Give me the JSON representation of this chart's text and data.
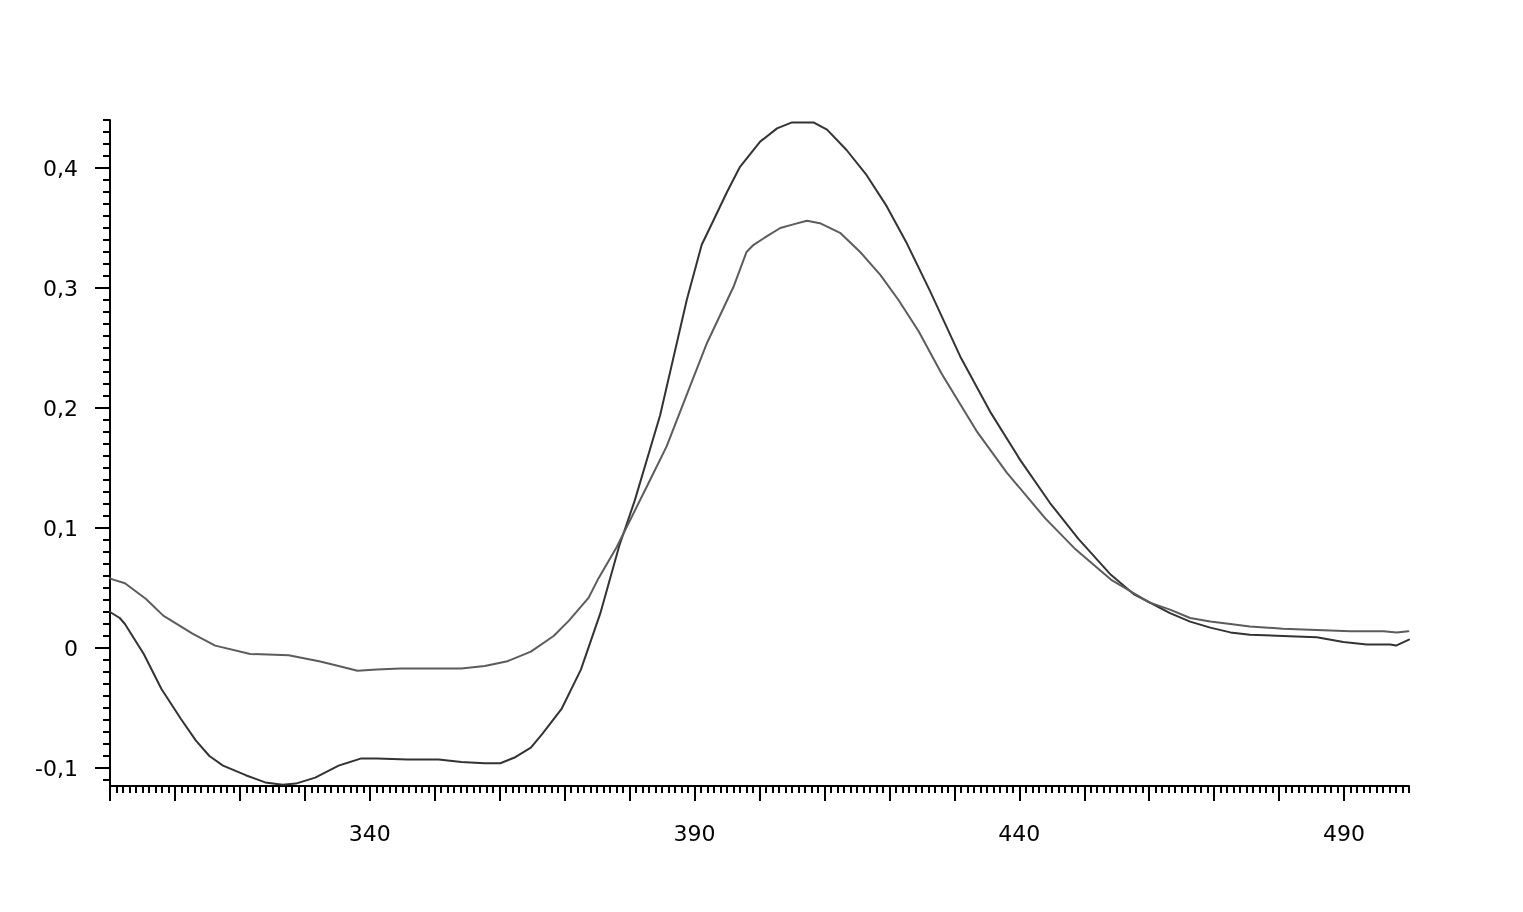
{
  "chart_data": {
    "type": "line",
    "xlim": [
      300,
      500
    ],
    "ylim": [
      -0.115,
      0.44
    ],
    "xticks": [
      {
        "value": 300,
        "label": null
      },
      {
        "value": 310,
        "label": null
      },
      {
        "value": 320,
        "label": null
      },
      {
        "value": 330,
        "label": null
      },
      340,
      {
        "value": 350,
        "label": null
      },
      {
        "value": 360,
        "label": null
      },
      {
        "value": 370,
        "label": null
      },
      {
        "value": 380,
        "label": null
      },
      390,
      {
        "value": 400,
        "label": null
      },
      {
        "value": 410,
        "label": null
      },
      {
        "value": 420,
        "label": null
      },
      {
        "value": 430,
        "label": null
      },
      440,
      {
        "value": 450,
        "label": null
      },
      {
        "value": 460,
        "label": null
      },
      {
        "value": 470,
        "label": null
      },
      {
        "value": 480,
        "label": null
      },
      490
    ],
    "yticks": [
      {
        "value": -0.1,
        "label": "-0,1"
      },
      0,
      {
        "value": 0.1,
        "label": "0,1"
      },
      {
        "value": 0.2,
        "label": "0,2"
      },
      {
        "value": 0.3,
        "label": "0,3"
      },
      {
        "value": 0.4,
        "label": "0,4"
      }
    ],
    "series": [
      {
        "color": "#333333",
        "x": [
          300,
          301.5,
          302.3,
          305.2,
          307.9,
          310.9,
          313.2,
          315.3,
          317.4,
          320.9,
          323.9,
          326.6,
          328.6,
          331.6,
          335.2,
          338.7,
          341.1,
          345.8,
          350.6,
          354.1,
          357.7,
          360.1,
          362.4,
          364.8,
          366.5,
          369.5,
          372.5,
          375.5,
          378.4,
          380.8,
          384.7,
          388.8,
          391.1,
          392.7,
          395.0,
          397.0,
          400.1,
          402.7,
          405.0,
          408.3,
          410.4,
          413.4,
          416.5,
          419.6,
          422.7,
          426.3,
          430.9,
          435.5,
          440.1,
          444.7,
          449.1,
          454.1,
          457.6,
          463.2,
          466.3,
          469.4,
          472.5,
          475.5,
          480.6,
          485.8,
          489.9,
          493.5,
          497.1,
          498.0,
          500
        ],
        "values": [
          0.03,
          0.025,
          0.02,
          -0.005,
          -0.034,
          -0.059,
          -0.077,
          -0.09,
          -0.098,
          -0.106,
          -0.112,
          -0.114,
          -0.113,
          -0.108,
          -0.098,
          -0.092,
          -0.092,
          -0.093,
          -0.093,
          -0.095,
          -0.096,
          -0.096,
          -0.091,
          -0.083,
          -0.072,
          -0.051,
          -0.018,
          0.029,
          0.085,
          0.123,
          0.194,
          0.29,
          0.336,
          0.354,
          0.38,
          0.401,
          0.422,
          0.433,
          0.438,
          0.438,
          0.432,
          0.415,
          0.394,
          0.368,
          0.337,
          0.297,
          0.243,
          0.197,
          0.157,
          0.121,
          0.091,
          0.061,
          0.045,
          0.029,
          0.022,
          0.017,
          0.013,
          0.011,
          0.01,
          0.009,
          0.005,
          0.003,
          0.003,
          0.002,
          0.007
        ]
      },
      {
        "color": "#5c5c5c",
        "x": [
          300,
          300.5,
          302.3,
          305.5,
          308.2,
          312.7,
          316.2,
          321.6,
          327.5,
          332.2,
          335.2,
          338.1,
          341.1,
          344.7,
          349.4,
          354.1,
          357.7,
          361.2,
          364.8,
          368.3,
          370.7,
          373.7,
          375.2,
          378.0,
          380.3,
          382.6,
          385.7,
          389.3,
          391.9,
          396.0,
          398.0,
          399.1,
          401.1,
          403.2,
          405.2,
          407.3,
          409.3,
          412.4,
          415.5,
          418.6,
          421.4,
          424.5,
          428.0,
          433.4,
          438.1,
          444.0,
          448.7,
          454.1,
          460.0,
          463.2,
          466.3,
          469.4,
          472.5,
          475.5,
          480.6,
          485.8,
          491.0,
          496.1,
          498.1,
          499.9
        ],
        "values": [
          0.058,
          0.057,
          0.054,
          0.041,
          0.027,
          0.012,
          0.002,
          -0.005,
          -0.006,
          -0.011,
          -0.015,
          -0.019,
          -0.018,
          -0.017,
          -0.017,
          -0.017,
          -0.015,
          -0.011,
          -0.003,
          0.01,
          0.023,
          0.042,
          0.058,
          0.084,
          0.109,
          0.134,
          0.168,
          0.218,
          0.254,
          0.301,
          0.33,
          0.336,
          0.343,
          0.35,
          0.353,
          0.356,
          0.354,
          0.346,
          0.33,
          0.311,
          0.29,
          0.264,
          0.229,
          0.181,
          0.146,
          0.108,
          0.082,
          0.057,
          0.038,
          0.032,
          0.025,
          0.022,
          0.02,
          0.018,
          0.016,
          0.015,
          0.014,
          0.014,
          0.013,
          0.014
        ]
      }
    ]
  }
}
